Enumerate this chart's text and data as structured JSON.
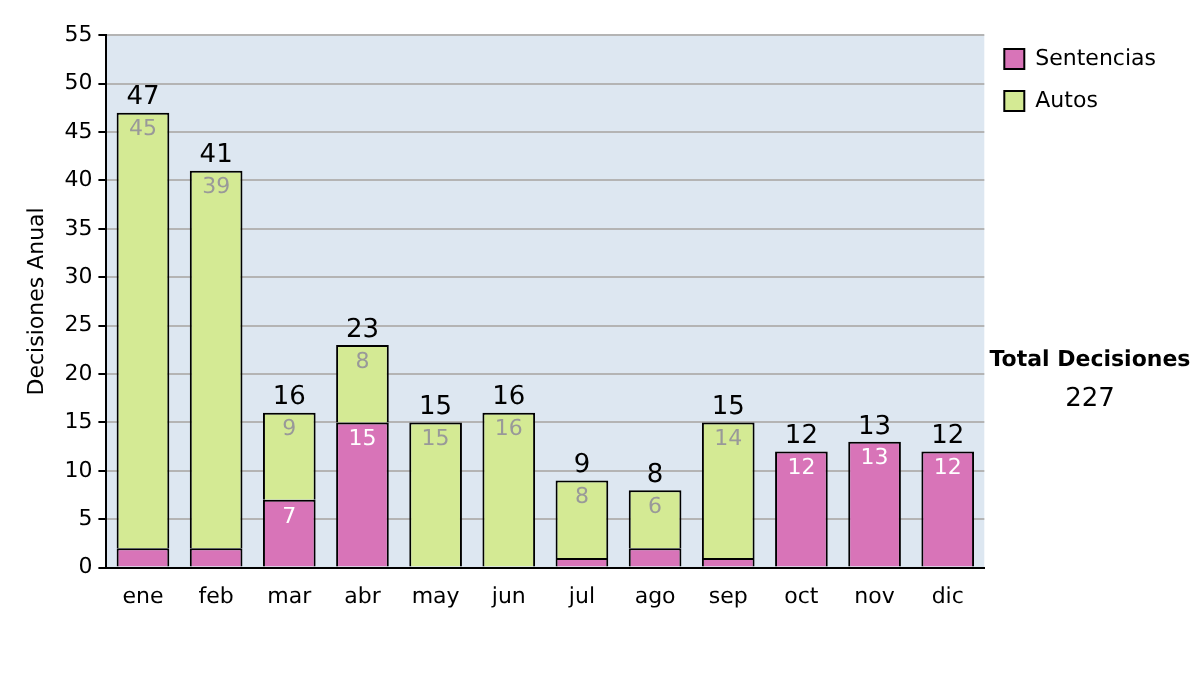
{
  "chart_data": {
    "type": "bar",
    "stacked": true,
    "ylabel": "Decisiones Anual",
    "categories": [
      "ene",
      "feb",
      "mar",
      "abr",
      "may",
      "jun",
      "jul",
      "ago",
      "sep",
      "oct",
      "nov",
      "dic"
    ],
    "series": [
      {
        "name": "Sentencias",
        "color": "#d874b8",
        "values": [
          2,
          2,
          7,
          15,
          0,
          0,
          1,
          2,
          1,
          12,
          13,
          12
        ],
        "value_labels": [
          null,
          null,
          "7",
          "15",
          null,
          null,
          null,
          null,
          null,
          "12",
          "13",
          "12"
        ]
      },
      {
        "name": "Autos",
        "color": "#d4ea94",
        "values": [
          45,
          39,
          9,
          8,
          15,
          16,
          8,
          6,
          14,
          0,
          0,
          0
        ],
        "value_labels": [
          "45",
          "39",
          "9",
          "8",
          "15",
          "16",
          "8",
          "6",
          "14",
          null,
          null,
          null
        ]
      }
    ],
    "totals": [
      "47",
      "41",
      "16",
      "23",
      "15",
      "16",
      "9",
      "8",
      "15",
      "12",
      "13",
      "12"
    ],
    "ylim": [
      0,
      55
    ],
    "yticks": [
      0,
      5,
      10,
      15,
      20,
      25,
      30,
      35,
      40,
      45,
      50,
      55
    ],
    "grid": "y",
    "legend": "right",
    "annotations": [
      "Total Decisiones",
      "227"
    ]
  }
}
